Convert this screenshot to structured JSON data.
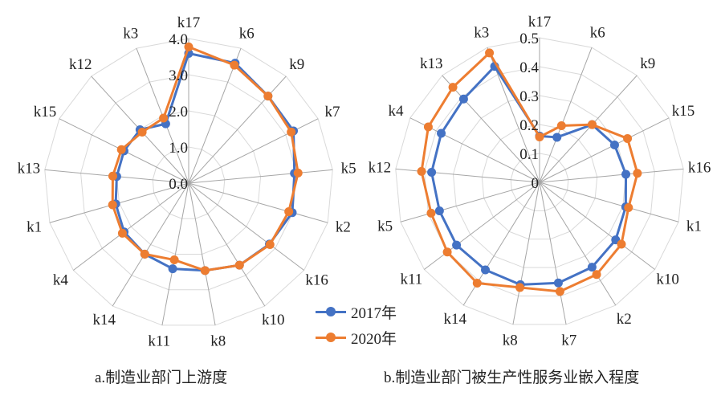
{
  "colors": {
    "s2017": "#4472C4",
    "s2020": "#ED7D31",
    "ring": "#d9d9d9",
    "spoke": "#a6a6a6"
  },
  "legend": [
    "2017年",
    "2020年"
  ],
  "chart_data": [
    {
      "type": "radar",
      "caption": "a.制造业部门上游度",
      "categories": [
        "k17",
        "k6",
        "k9",
        "k7",
        "k5",
        "k2",
        "k16",
        "k10",
        "k8",
        "k11",
        "k14",
        "k4",
        "k1",
        "k13",
        "k15",
        "k12",
        "k3"
      ],
      "rlim": [
        0,
        4
      ],
      "ticks": [
        "0.0",
        "1.0",
        "2.0",
        "3.0",
        "4.0"
      ],
      "tick_values": [
        0,
        1,
        2,
        3,
        4
      ],
      "series": [
        {
          "name": "2017年",
          "values": [
            3.59,
            3.56,
            3.26,
            3.24,
            2.94,
            2.98,
            2.8,
            2.67,
            2.46,
            2.41,
            2.31,
            2.24,
            2.1,
            2.0,
            2.0,
            2.0,
            1.76
          ]
        },
        {
          "name": "2020年",
          "values": [
            3.77,
            3.5,
            3.26,
            3.17,
            3.04,
            2.88,
            2.82,
            2.67,
            2.46,
            2.16,
            2.31,
            2.3,
            2.19,
            2.11,
            2.08,
            1.91,
            1.93
          ]
        }
      ]
    },
    {
      "type": "radar",
      "caption": "b.制造业部门被生产性服务业嵌入程度",
      "categories": [
        "k17",
        "k6",
        "k9",
        "k15",
        "k16",
        "k1",
        "k10",
        "k2",
        "k7",
        "k8",
        "k14",
        "k11",
        "k5",
        "k12",
        "k4",
        "k13",
        "k3"
      ],
      "rlim": [
        0,
        0.5
      ],
      "ticks": [
        "0",
        "0.1",
        "0.2",
        "0.3",
        "0.4",
        "0.5"
      ],
      "tick_values": [
        0,
        0.1,
        0.2,
        0.3,
        0.4,
        0.5
      ],
      "series": [
        {
          "name": "2017年",
          "values": [
            0.16,
            0.167,
            0.27,
            0.29,
            0.3,
            0.31,
            0.33,
            0.345,
            0.354,
            0.36,
            0.356,
            0.36,
            0.36,
            0.375,
            0.38,
            0.39,
            0.43
          ]
        },
        {
          "name": "2020年",
          "values": [
            0.157,
            0.21,
            0.27,
            0.34,
            0.34,
            0.32,
            0.355,
            0.375,
            0.384,
            0.37,
            0.41,
            0.4,
            0.39,
            0.41,
            0.43,
            0.445,
            0.48
          ]
        }
      ]
    }
  ]
}
